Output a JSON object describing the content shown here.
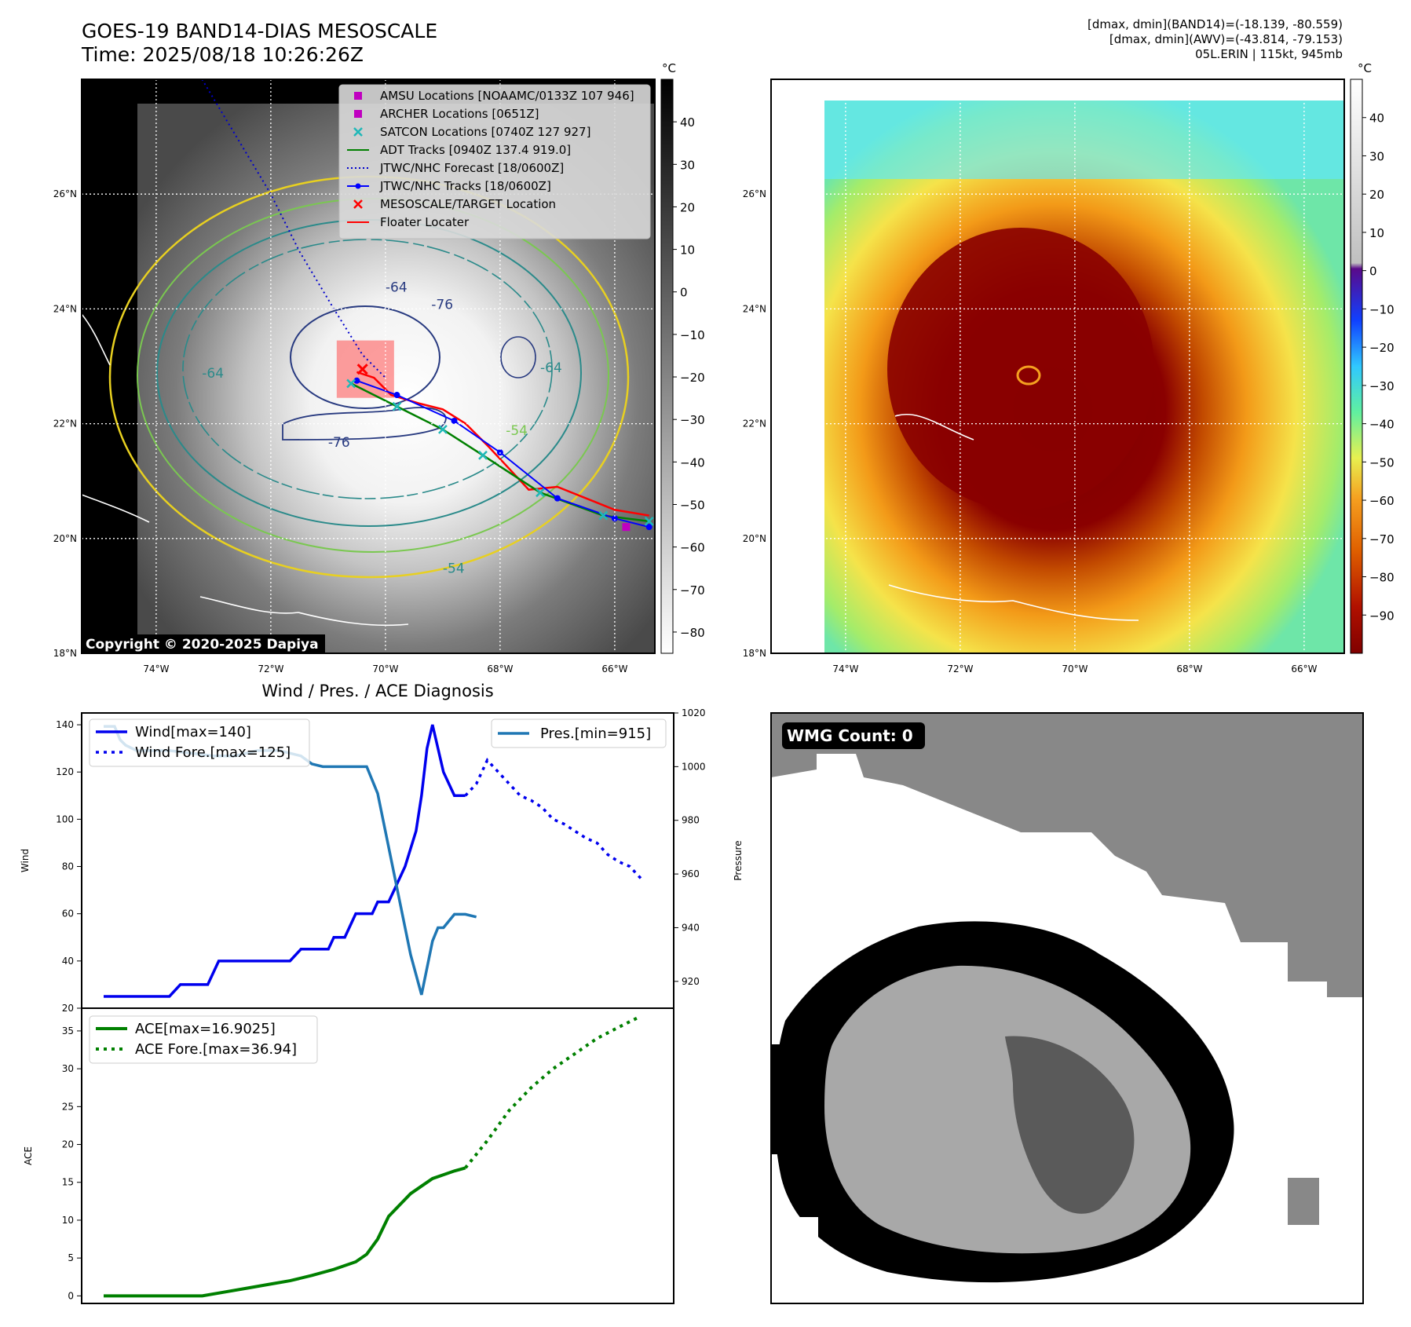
{
  "header": {
    "title_line1": "GOES-19 BAND14-DIAS MESOSCALE",
    "title_line2": "Time: 2025/08/18 10:26:26Z",
    "stats_line1": "[dmax, dmin](BAND14)=(-18.139, -80.559)",
    "stats_line2": "[dmax, dmin](AWV)=(-43.814, -79.153)",
    "stats_line3": "05L.ERIN | 115kt, 945mb"
  },
  "map_panels": {
    "lat_labels": [
      "26°N",
      "24°N",
      "22°N",
      "20°N",
      "18°N"
    ],
    "lon_labels": [
      "74°W",
      "72°W",
      "70°W",
      "68°W",
      "66°W"
    ],
    "lat_values": [
      26,
      24,
      22,
      20,
      18
    ],
    "lon_values": [
      -74,
      -72,
      -70,
      -68,
      -66
    ],
    "unit": "°C",
    "copyright": "Copyright © 2020-2025 Dapiya",
    "contour_labels": [
      "-64",
      "-76",
      "-76",
      "-64",
      "-64",
      "-54",
      "-54"
    ],
    "left_colorbar_ticks": [
      "40",
      "30",
      "20",
      "10",
      "0",
      "−10",
      "−20",
      "−30",
      "−40",
      "−50",
      "−60",
      "−70",
      "−80"
    ],
    "left_colorbar_values": [
      40,
      30,
      20,
      10,
      0,
      -10,
      -20,
      -30,
      -40,
      -50,
      -60,
      -70,
      -80
    ],
    "right_colorbar_ticks": [
      "40",
      "30",
      "20",
      "10",
      "0",
      "−10",
      "−20",
      "−30",
      "−40",
      "−50",
      "−60",
      "−70",
      "−80",
      "−90"
    ],
    "right_colorbar_values": [
      40,
      30,
      20,
      10,
      0,
      -10,
      -20,
      -30,
      -40,
      -50,
      -60,
      -70,
      -80,
      -90
    ],
    "legend": [
      {
        "label": "AMSU Locations [NOAAMC/0133Z 107 946]",
        "color": "#c000c0",
        "icon": "square-marker"
      },
      {
        "label": "ARCHER Locations [0651Z]",
        "color": "#c000c0",
        "icon": "square-marker"
      },
      {
        "label": "SATCON Locations [0740Z 127 927]",
        "color": "#1fb8b8",
        "icon": "x-marker"
      },
      {
        "label": "ADT Tracks [0940Z 137.4 919.0]",
        "color": "#008000",
        "icon": "line"
      },
      {
        "label": "JTWC/NHC Forecast [18/0600Z]",
        "color": "#0000cc",
        "icon": "dotted-line"
      },
      {
        "label": "JTWC/NHC Tracks [18/0600Z]",
        "color": "#0000ff",
        "icon": "line-dot"
      },
      {
        "label": "MESOSCALE/TARGET Location",
        "color": "#ff0000",
        "icon": "x-marker"
      },
      {
        "label": "Floater Locater",
        "color": "#ff0000",
        "icon": "line"
      }
    ],
    "tracks": {
      "jtwc_forecast": [
        [
          -73.2,
          28.0
        ],
        [
          -72.6,
          27.0
        ],
        [
          -72.0,
          26.0
        ],
        [
          -71.5,
          25.0
        ],
        [
          -70.9,
          24.0
        ],
        [
          -70.4,
          23.2
        ],
        [
          -70.0,
          22.8
        ]
      ],
      "jtwc_track": [
        [
          -65.4,
          20.2
        ],
        [
          -66.0,
          20.35
        ],
        [
          -67.0,
          20.7
        ],
        [
          -68.0,
          21.5
        ],
        [
          -68.8,
          22.05
        ],
        [
          -69.8,
          22.5
        ],
        [
          -70.5,
          22.75
        ]
      ],
      "adt_track": [
        [
          -65.4,
          20.3
        ],
        [
          -66.2,
          20.4
        ],
        [
          -67.3,
          20.8
        ],
        [
          -68.3,
          21.45
        ],
        [
          -69.0,
          21.9
        ],
        [
          -69.8,
          22.3
        ],
        [
          -70.6,
          22.7
        ]
      ],
      "floater": [
        [
          -65.4,
          20.4
        ],
        [
          -66.0,
          20.5
        ],
        [
          -67.0,
          20.9
        ],
        [
          -67.5,
          20.85
        ],
        [
          -68.2,
          21.6
        ],
        [
          -68.6,
          22.0
        ],
        [
          -69.0,
          22.25
        ],
        [
          -69.4,
          22.35
        ],
        [
          -69.9,
          22.5
        ],
        [
          -70.2,
          22.8
        ],
        [
          -70.5,
          22.9
        ]
      ]
    },
    "target_box": {
      "lon_min": -70.85,
      "lon_max": -69.85,
      "lat_min": 22.45,
      "lat_max": 23.45
    }
  },
  "chart_data": [
    {
      "type": "line",
      "title": "Wind / Pres. / ACE Diagnosis",
      "ylabel": "Wind",
      "ylabel_right": "Pressure",
      "ylim": [
        20,
        145
      ],
      "ylim_right": [
        910,
        1020
      ],
      "yticks": [
        20,
        40,
        60,
        80,
        100,
        120,
        140
      ],
      "yticks_right": [
        920,
        940,
        960,
        980,
        1000,
        1020
      ],
      "xlim": [
        0,
        100
      ],
      "series": [
        {
          "name": "Wind[max=140]",
          "axis": "left",
          "color": "#0000ee",
          "style": "solid",
          "x": [
            0,
            4,
            6,
            8,
            12,
            14,
            16,
            19,
            21,
            25,
            28,
            31,
            34,
            36,
            38,
            41,
            42,
            44,
            46,
            49,
            50,
            52,
            53,
            55,
            57,
            58,
            59,
            60,
            62,
            64,
            65,
            66
          ],
          "y": [
            25,
            25,
            25,
            25,
            25,
            30,
            30,
            30,
            40,
            40,
            40,
            40,
            40,
            45,
            45,
            45,
            50,
            50,
            60,
            60,
            65,
            65,
            70,
            80,
            95,
            110,
            130,
            140,
            120,
            110,
            110,
            110
          ]
        },
        {
          "name": "Wind Fore.[max=125]",
          "axis": "left",
          "color": "#0000ee",
          "style": "dotted",
          "x": [
            66,
            68,
            70,
            72,
            74,
            76,
            78,
            80,
            82,
            84,
            86,
            88,
            90,
            92,
            94,
            96,
            98
          ],
          "y": [
            110,
            115,
            125,
            120,
            115,
            110,
            108,
            105,
            100,
            98,
            95,
            92,
            90,
            85,
            82,
            80,
            75
          ]
        },
        {
          "name": "Pres.[min=915]",
          "axis": "right",
          "color": "#1f77b4",
          "style": "solid",
          "x": [
            0,
            2,
            3,
            4,
            6,
            8,
            12,
            16,
            20,
            24,
            28,
            32,
            36,
            38,
            40,
            44,
            48,
            50,
            52,
            54,
            56,
            58,
            59,
            60,
            61,
            62,
            64,
            66,
            68
          ],
          "y": [
            1015,
            1015,
            1010,
            1008,
            1006,
            1006,
            1006,
            1005,
            1004,
            1004,
            1006,
            1006,
            1004,
            1001,
            1000,
            1000,
            1000,
            990,
            970,
            950,
            930,
            915,
            925,
            935,
            940,
            940,
            945,
            945,
            944
          ]
        }
      ]
    },
    {
      "type": "line",
      "ylabel": "ACE",
      "ylim": [
        -1,
        38
      ],
      "yticks": [
        0,
        5,
        10,
        15,
        20,
        25,
        30,
        35
      ],
      "xlim": [
        0,
        100
      ],
      "series": [
        {
          "name": "ACE[max=16.9025]",
          "color": "#008000",
          "style": "solid",
          "x": [
            0,
            10,
            18,
            22,
            26,
            30,
            34,
            38,
            42,
            46,
            48,
            50,
            52,
            54,
            56,
            58,
            60,
            62,
            64,
            66
          ],
          "y": [
            0,
            0,
            0,
            0.5,
            1.0,
            1.5,
            2.0,
            2.7,
            3.5,
            4.5,
            5.5,
            7.5,
            10.5,
            12.0,
            13.5,
            14.5,
            15.5,
            16.0,
            16.5,
            16.9
          ]
        },
        {
          "name": "ACE Fore.[max=36.94]",
          "color": "#008000",
          "style": "dotted",
          "x": [
            66,
            70,
            74,
            78,
            82,
            86,
            90,
            94,
            98
          ],
          "y": [
            16.9,
            20.5,
            24.5,
            27.5,
            30.0,
            32.0,
            34.0,
            35.5,
            36.94
          ]
        }
      ]
    }
  ],
  "wmg_panel": {
    "label": "WMG Count: 0"
  }
}
